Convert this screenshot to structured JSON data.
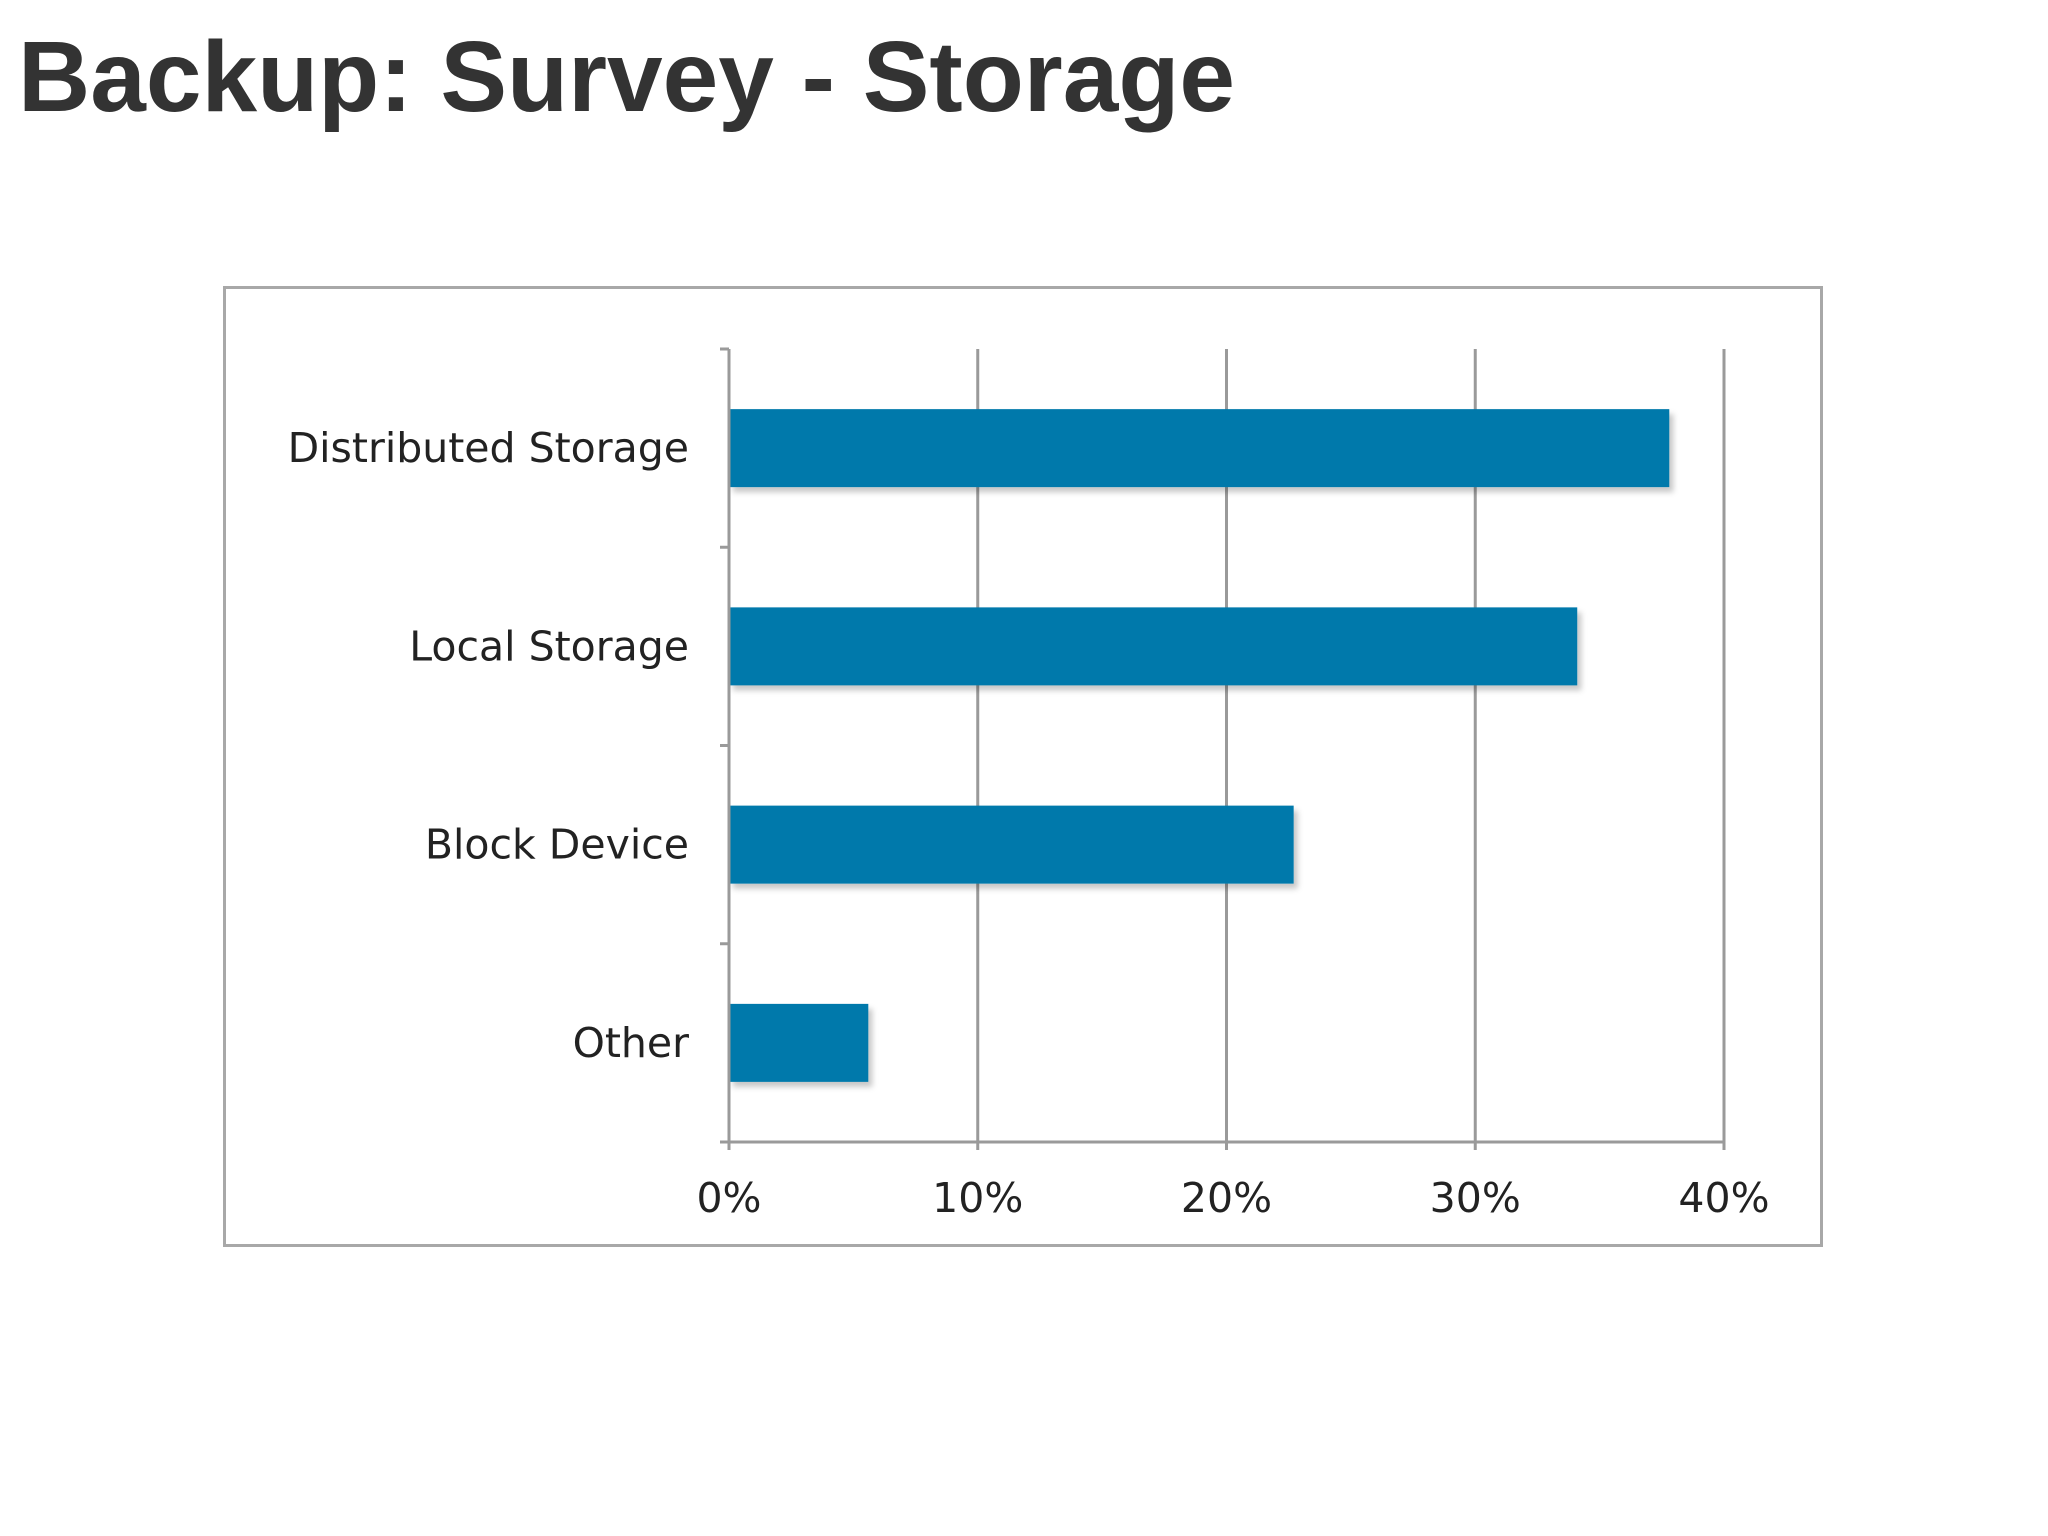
{
  "slide": {
    "title": "Backup: Survey - Storage"
  },
  "chart_data": {
    "type": "bar",
    "orientation": "horizontal",
    "categories": [
      "Distributed Storage",
      "Local Storage",
      "Block Device",
      "Other"
    ],
    "values": [
      37.8,
      34.1,
      22.7,
      5.6
    ],
    "value_unit": "%",
    "xlim": [
      0,
      40
    ],
    "x_ticks": [
      0,
      10,
      20,
      30,
      40
    ],
    "x_tick_labels": [
      "0%",
      "10%",
      "20%",
      "30%",
      "40%"
    ],
    "grid": "vertical",
    "legend": "none",
    "bar_color": "#0579ab",
    "title": "",
    "xlabel": "",
    "ylabel": ""
  }
}
